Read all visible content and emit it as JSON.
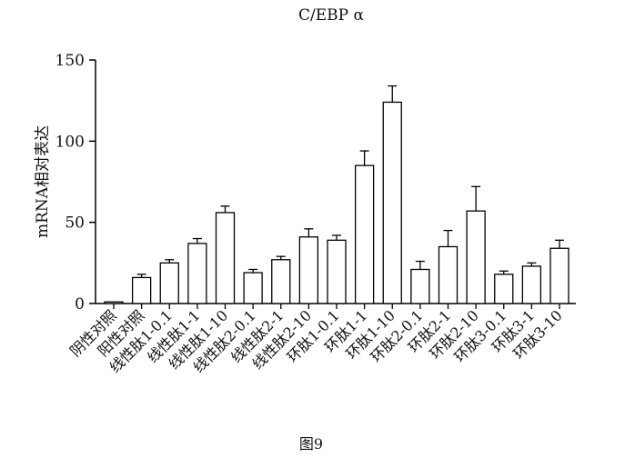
{
  "chart_data": {
    "type": "bar",
    "title": "C/EBP α",
    "ylabel": "mRNA相对表达",
    "xlabel": "",
    "ylim": [
      0,
      150
    ],
    "yticks": [
      0,
      50,
      100,
      150
    ],
    "categories": [
      "阴性对照",
      "阳性对照",
      "线性肽1-0.1",
      "线性肽1-1",
      "线性肽1-10",
      "线性肽2-0.1",
      "线性肽2-1",
      "线性肽2-10",
      "环肽1-0.1",
      "环肽1-1",
      "环肽1-10",
      "环肽2-0.1",
      "环肽2-1",
      "环肽2-10",
      "环肽3-0.1",
      "环肽3-1",
      "环肽3-10"
    ],
    "values": [
      1,
      16,
      25,
      37,
      56,
      19,
      27,
      41,
      39,
      85,
      124,
      21,
      35,
      57,
      18,
      23,
      34
    ],
    "errors": [
      0,
      2,
      2,
      3,
      4,
      2,
      2,
      5,
      3,
      9,
      10,
      5,
      10,
      15,
      2,
      2,
      5
    ],
    "grid": false,
    "bar_fill": "#ffffff",
    "bar_stroke": "#000000"
  },
  "caption": "图9"
}
